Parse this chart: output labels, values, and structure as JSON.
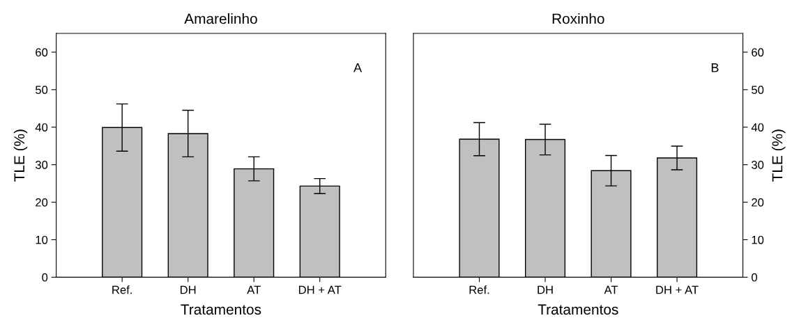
{
  "chart_data": [
    {
      "type": "bar",
      "title": "Amarelinho",
      "xlabel": "Tratamentos",
      "ylabel": "TLE (%)",
      "categories": [
        "Ref.",
        "DH",
        "AT",
        "DH + AT"
      ],
      "values": [
        39.9,
        38.3,
        28.9,
        24.3
      ],
      "errors": [
        6.3,
        6.2,
        3.2,
        2.0
      ],
      "color": "#c0c0c0",
      "ylim": [
        0,
        65
      ],
      "yticks": [
        0,
        10,
        20,
        30,
        40,
        50,
        60
      ],
      "annotations": [
        "A"
      ],
      "grid": false,
      "legend": false
    },
    {
      "type": "bar",
      "title": "Roxinho",
      "xlabel": "Tratamentos",
      "y2label": "TLE (%)",
      "categories": [
        "Ref.",
        "DH",
        "AT",
        "DH + AT"
      ],
      "series": [
        {
          "color": "#c0c0c0",
          "axis": "y2",
          "values": [
            36.8,
            36.7,
            28.4,
            31.8
          ],
          "errors": [
            4.4,
            4.1,
            4.05,
            3.15
          ]
        }
      ],
      "y2lim": [
        0,
        65
      ],
      "y2ticks": [
        0,
        10,
        20,
        30,
        40,
        50,
        60
      ],
      "annotations": [
        "B"
      ],
      "grid": false,
      "legend": false
    }
  ]
}
